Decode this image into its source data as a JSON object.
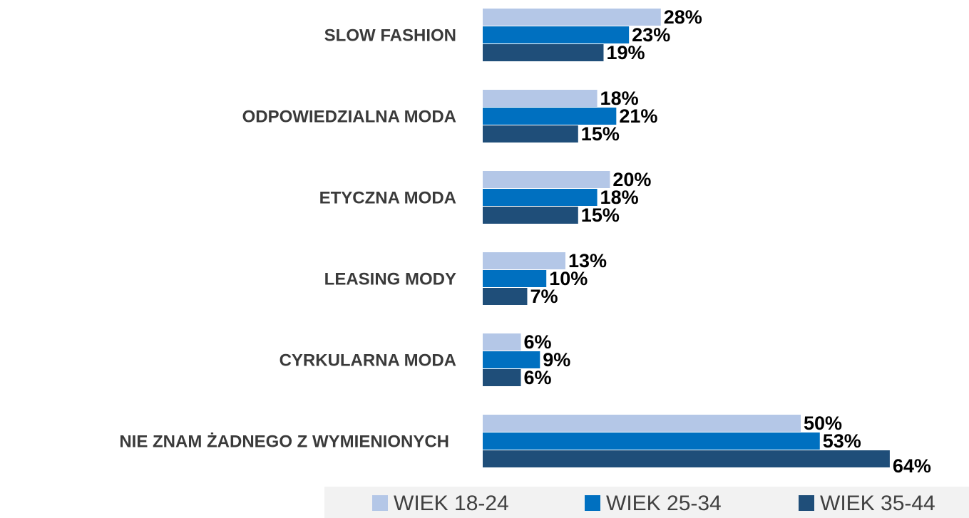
{
  "chart_data": {
    "type": "bar",
    "orientation": "horizontal",
    "categories": [
      "SLOW FASHION",
      "ODPOWIEDZIALNA MODA",
      "ETYCZNA MODA",
      "LEASING MODY",
      "CYRKULARNA MODA",
      "NIE ZNAM ŻADNEGO Z WYMIENIONYCH"
    ],
    "series": [
      {
        "name": "WIEK 18-24",
        "color": "#b4c7e7",
        "values": [
          28,
          18,
          20,
          13,
          6,
          50
        ],
        "value_labels": [
          "28%",
          "18%",
          "20%",
          "13%",
          "6%",
          "50%"
        ]
      },
      {
        "name": "WIEK 25-34",
        "color": "#0070c0",
        "values": [
          23,
          21,
          18,
          10,
          9,
          53
        ],
        "value_labels": [
          "23%",
          "21%",
          "18%",
          "10%",
          "9%",
          "53%"
        ]
      },
      {
        "name": "WIEK 35-44",
        "color": "#1f4e79",
        "values": [
          19,
          15,
          15,
          7,
          6,
          64
        ],
        "value_labels": [
          "19%",
          "15%",
          "15%",
          "7%",
          "6%",
          "64%"
        ]
      }
    ],
    "legend": "bottom"
  }
}
